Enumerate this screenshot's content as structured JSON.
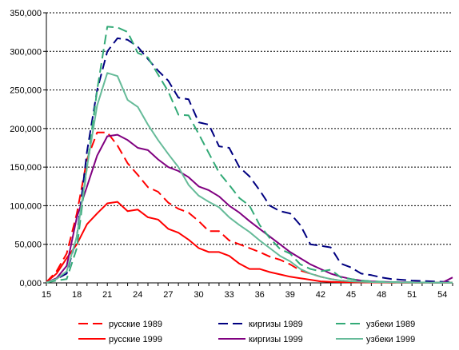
{
  "chart_data": {
    "type": "line",
    "title": "",
    "xlabel": "",
    "ylabel": "",
    "xlim": [
      15,
      55
    ],
    "ylim": [
      0,
      350000
    ],
    "x_ticks": [
      15,
      18,
      21,
      24,
      27,
      30,
      33,
      36,
      39,
      42,
      45,
      48,
      51,
      54
    ],
    "y_ticks": [
      0,
      50000,
      100000,
      150000,
      200000,
      250000,
      300000,
      350000
    ],
    "y_tick_labels": [
      "0,000",
      "50,000",
      "100,000",
      "150,000",
      "200,000",
      "250,000",
      "300,000",
      "350,000"
    ],
    "grid": "horizontal dashed",
    "legend_position": "bottom",
    "series": [
      {
        "name": "русские 1989",
        "color": "#ff0000",
        "dash": "dashed",
        "x": [
          15,
          16,
          17,
          18,
          19,
          20,
          21,
          22,
          23,
          24,
          25,
          26,
          27,
          28,
          29,
          30,
          31,
          32,
          33,
          34,
          35,
          36,
          37,
          38,
          39,
          40,
          41,
          42,
          43,
          44,
          45,
          46,
          47,
          48,
          49,
          50,
          51,
          52,
          53,
          54,
          55
        ],
        "y": [
          1000,
          15000,
          38000,
          90000,
          160000,
          195000,
          195000,
          178000,
          155000,
          140000,
          124000,
          118000,
          104000,
          96000,
          91000,
          80000,
          67000,
          67000,
          55000,
          50000,
          45000,
          40000,
          34000,
          30000,
          24000,
          16000,
          12000,
          8000,
          5000,
          3000,
          2000,
          1200,
          800,
          500,
          400,
          300,
          300,
          250,
          200,
          200,
          200
        ]
      },
      {
        "name": "русские 1999",
        "color": "#ff0000",
        "dash": "solid",
        "x": [
          15,
          16,
          17,
          18,
          19,
          20,
          21,
          22,
          23,
          24,
          25,
          26,
          27,
          28,
          29,
          30,
          31,
          32,
          33,
          34,
          35,
          36,
          37,
          38,
          39,
          40,
          41,
          42,
          43,
          44,
          45,
          46,
          47,
          48,
          49,
          50,
          51,
          52,
          53,
          54,
          55
        ],
        "y": [
          1000,
          12000,
          32000,
          50000,
          76000,
          90000,
          103000,
          105000,
          93000,
          95000,
          85000,
          82000,
          70000,
          65000,
          56000,
          45000,
          40000,
          40000,
          35000,
          25000,
          18000,
          18000,
          14000,
          11000,
          8000,
          6000,
          4000,
          2000,
          1200,
          900,
          700,
          600,
          500,
          400,
          300,
          300,
          250,
          200,
          200,
          200,
          200
        ]
      },
      {
        "name": "киргизы 1989",
        "color": "#000080",
        "dash": "dashed",
        "x": [
          15,
          16,
          17,
          18,
          19,
          20,
          21,
          22,
          23,
          24,
          25,
          26,
          27,
          28,
          29,
          30,
          31,
          32,
          33,
          34,
          35,
          36,
          37,
          38,
          39,
          40,
          41,
          42,
          43,
          44,
          45,
          46,
          47,
          48,
          49,
          50,
          51,
          52,
          53,
          54,
          55
        ],
        "y": [
          500,
          5000,
          12000,
          60000,
          170000,
          250000,
          300000,
          317000,
          315000,
          306000,
          290000,
          275000,
          262000,
          240000,
          238000,
          208000,
          205000,
          177000,
          175000,
          150000,
          138000,
          120000,
          100000,
          93000,
          90000,
          75000,
          50000,
          48000,
          46000,
          25000,
          20000,
          12000,
          10000,
          7000,
          5000,
          4000,
          3000,
          2500,
          2000,
          1500,
          1000
        ]
      },
      {
        "name": "киргизы 1999",
        "color": "#800080",
        "dash": "solid",
        "x": [
          15,
          16,
          17,
          18,
          19,
          20,
          21,
          22,
          23,
          24,
          25,
          26,
          27,
          28,
          29,
          30,
          31,
          32,
          33,
          34,
          35,
          36,
          37,
          38,
          39,
          40,
          41,
          42,
          43,
          44,
          45,
          46,
          47,
          48,
          49,
          50,
          51,
          52,
          53,
          54,
          55
        ],
        "y": [
          500,
          6000,
          22000,
          85000,
          125000,
          165000,
          190000,
          192000,
          185000,
          175000,
          172000,
          160000,
          150000,
          145000,
          137000,
          125000,
          120000,
          112000,
          100000,
          91000,
          80000,
          70000,
          60000,
          50000,
          40000,
          32000,
          24000,
          18000,
          12000,
          8000,
          5000,
          3000,
          2000,
          1500,
          1000,
          800,
          600,
          500,
          400,
          300,
          7000
        ]
      },
      {
        "name": "узбеки 1989",
        "color": "#33aa77",
        "dash": "dashed",
        "x": [
          15,
          16,
          17,
          18,
          19,
          20,
          21,
          22,
          23,
          24,
          25,
          26,
          27,
          28,
          29,
          30,
          31,
          32,
          33,
          34,
          35,
          36,
          37,
          38,
          39,
          40,
          41,
          42,
          43,
          44,
          45,
          46,
          47,
          48,
          49,
          50,
          51,
          52,
          53,
          54,
          55
        ],
        "y": [
          500,
          3000,
          5000,
          45000,
          150000,
          250000,
          332000,
          331000,
          325000,
          298000,
          292000,
          270000,
          248000,
          218000,
          217000,
          193000,
          168000,
          143000,
          127000,
          110000,
          100000,
          75000,
          58000,
          44000,
          38000,
          24000,
          18000,
          15000,
          17000,
          7000,
          5000,
          3000,
          2000,
          1500,
          1000,
          800,
          600,
          500,
          400,
          300,
          200
        ]
      },
      {
        "name": "узбеки 1999",
        "color": "#66bb99",
        "dash": "solid",
        "x": [
          15,
          16,
          17,
          18,
          19,
          20,
          21,
          22,
          23,
          24,
          25,
          26,
          27,
          28,
          29,
          30,
          31,
          32,
          33,
          34,
          35,
          36,
          37,
          38,
          39,
          40,
          41,
          42,
          43,
          44,
          45,
          46,
          47,
          48,
          49,
          50,
          51,
          52,
          53,
          54,
          55
        ],
        "y": [
          500,
          5000,
          15000,
          60000,
          150000,
          230000,
          272000,
          268000,
          237000,
          228000,
          205000,
          185000,
          167000,
          150000,
          127000,
          113000,
          105000,
          98000,
          85000,
          75000,
          66000,
          55000,
          45000,
          35000,
          28000,
          18000,
          12000,
          8000,
          5000,
          3000,
          2000,
          1500,
          1000,
          800,
          600,
          400,
          300,
          300,
          200,
          200,
          200
        ]
      }
    ]
  }
}
